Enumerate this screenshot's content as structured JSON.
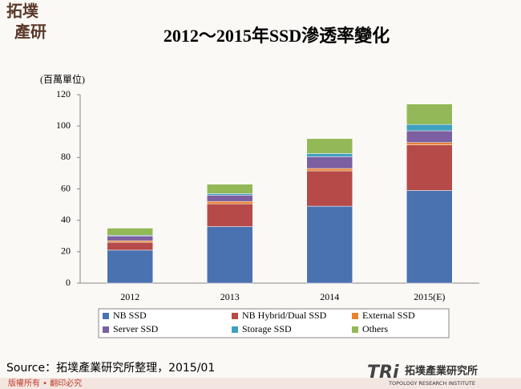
{
  "header": {
    "logo": [
      "拓墣",
      "產研"
    ]
  },
  "chart_data": {
    "type": "stacked-bar",
    "title": "2012～2015年SSD滲透率變化",
    "y_label": "(百萬單位)",
    "categories": [
      "2012",
      "2013",
      "2014",
      "2015(E)"
    ],
    "series": [
      {
        "name": "NB SSD",
        "color": "#4a72b0",
        "values": [
          21,
          36,
          49,
          59
        ]
      },
      {
        "name": "NB Hybrid/Dual SSD",
        "color": "#b54a48",
        "values": [
          5,
          14.5,
          22.5,
          29
        ]
      },
      {
        "name": "External SSD",
        "color": "#e8822f",
        "values": [
          1,
          1.5,
          1.5,
          1.5
        ]
      },
      {
        "name": "Server SSD",
        "color": "#7c5fa0",
        "values": [
          3,
          4,
          7.5,
          7.5
        ]
      },
      {
        "name": "Storage SSD",
        "color": "#3fa0c0",
        "values": [
          0.5,
          1,
          2,
          4
        ]
      },
      {
        "name": "Others",
        "color": "#93b857",
        "values": [
          4.5,
          6,
          9.5,
          13
        ]
      }
    ],
    "ylim": [
      0,
      120
    ],
    "yticks": [
      0,
      20,
      40,
      60,
      80,
      100,
      120
    ],
    "grid": false
  },
  "footer": {
    "source": "Source：拓墣產業研究所整理，2015/01",
    "copyright": "版權所有 • 翻印必究",
    "org": "拓墣產業研究所",
    "org_en": "TOPOLOGY RESEARCH INSTITUTE",
    "brand": "TRi"
  }
}
